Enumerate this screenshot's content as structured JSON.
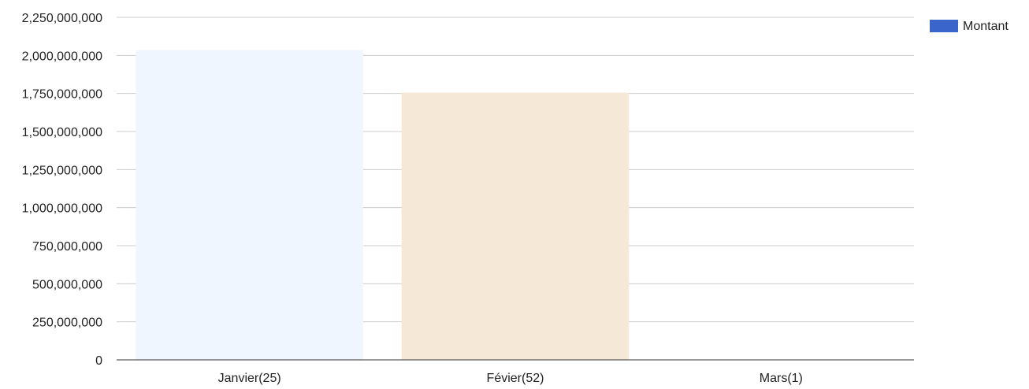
{
  "chart_data": {
    "type": "bar",
    "categories": [
      "Janvier(25)",
      "Févier(52)",
      "Mars(1)"
    ],
    "series": [
      {
        "name": "Montant",
        "values": [
          2035000000,
          1755000000,
          2000000
        ]
      }
    ],
    "bar_colors": [
      "#eff6ff",
      "#f5e8d6",
      "#5b9e9c"
    ],
    "legend_color": "#3a66cc",
    "ylim": [
      0,
      2250000000
    ],
    "yticks": [
      0,
      250000000,
      500000000,
      750000000,
      1000000000,
      1250000000,
      1500000000,
      1750000000,
      2000000000,
      2250000000
    ],
    "ytick_labels": [
      "0",
      "250,000,000",
      "500,000,000",
      "750,000,000",
      "1,000,000,000",
      "1,250,000,000",
      "1,500,000,000",
      "1,750,000,000",
      "2,000,000,000",
      "2,250,000,000"
    ],
    "grid": true,
    "legend_position": "top-right",
    "title": "",
    "xlabel": "",
    "ylabel": ""
  }
}
